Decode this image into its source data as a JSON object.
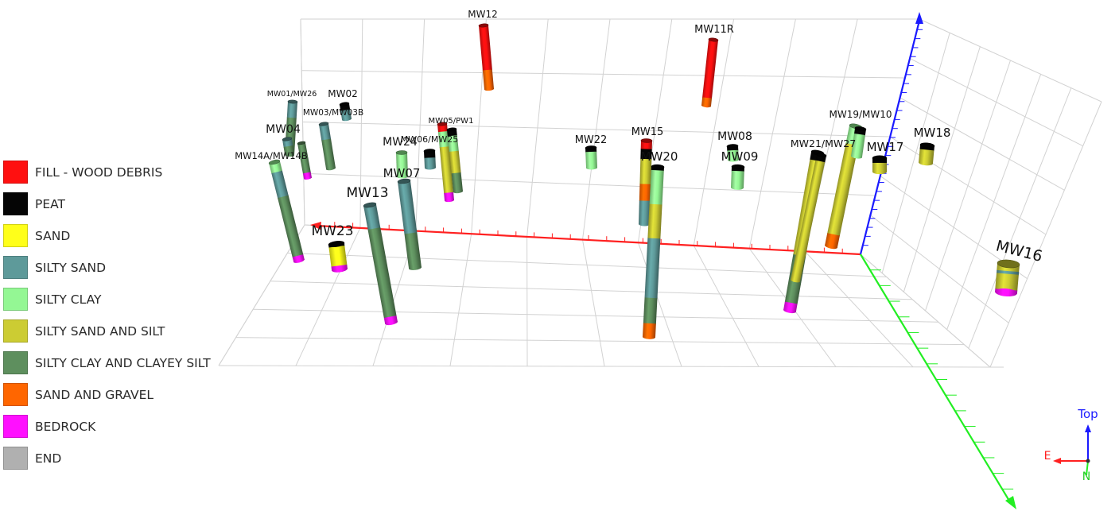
{
  "legend": [
    {
      "label": "FILL - WOOD DEBRIS",
      "color": "#ff1010"
    },
    {
      "label": "PEAT",
      "color": "#050505"
    },
    {
      "label": "SAND",
      "color": "#ffff1a"
    },
    {
      "label": "SILTY SAND",
      "color": "#5e9a9a"
    },
    {
      "label": "SILTY CLAY",
      "color": "#94f794"
    },
    {
      "label": "SILTY SAND AND SILT",
      "color": "#cccc33"
    },
    {
      "label": "SILTY CLAY AND CLAYEY SILT",
      "color": "#5e8f5e"
    },
    {
      "label": "SAND AND GRAVEL",
      "color": "#ff6600"
    },
    {
      "label": "BEDROCK",
      "color": "#ff10ff"
    },
    {
      "label": "END",
      "color": "#b0b0b0"
    }
  ],
  "wells": [
    "MW12",
    "MW11R",
    "MW01/MW26",
    "MW02",
    "MW03/MW03B",
    "MW04",
    "MW14A/MW14B",
    "MW05/PW1",
    "MW06/MW25",
    "MW24",
    "MW07",
    "MW13",
    "MW23",
    "MW22",
    "MW15",
    "MW20",
    "MW08",
    "MW09",
    "MW19/MW10",
    "MW21/MW27",
    "MW17",
    "MW18",
    "MW16"
  ],
  "orientation": {
    "up": "Top",
    "east": "E",
    "north": "N"
  },
  "colors": {
    "x_axis": "#ff2020",
    "z_axis": "#1a1aff",
    "y_axis": "#22ee22",
    "grid": "#d2d2d2"
  }
}
